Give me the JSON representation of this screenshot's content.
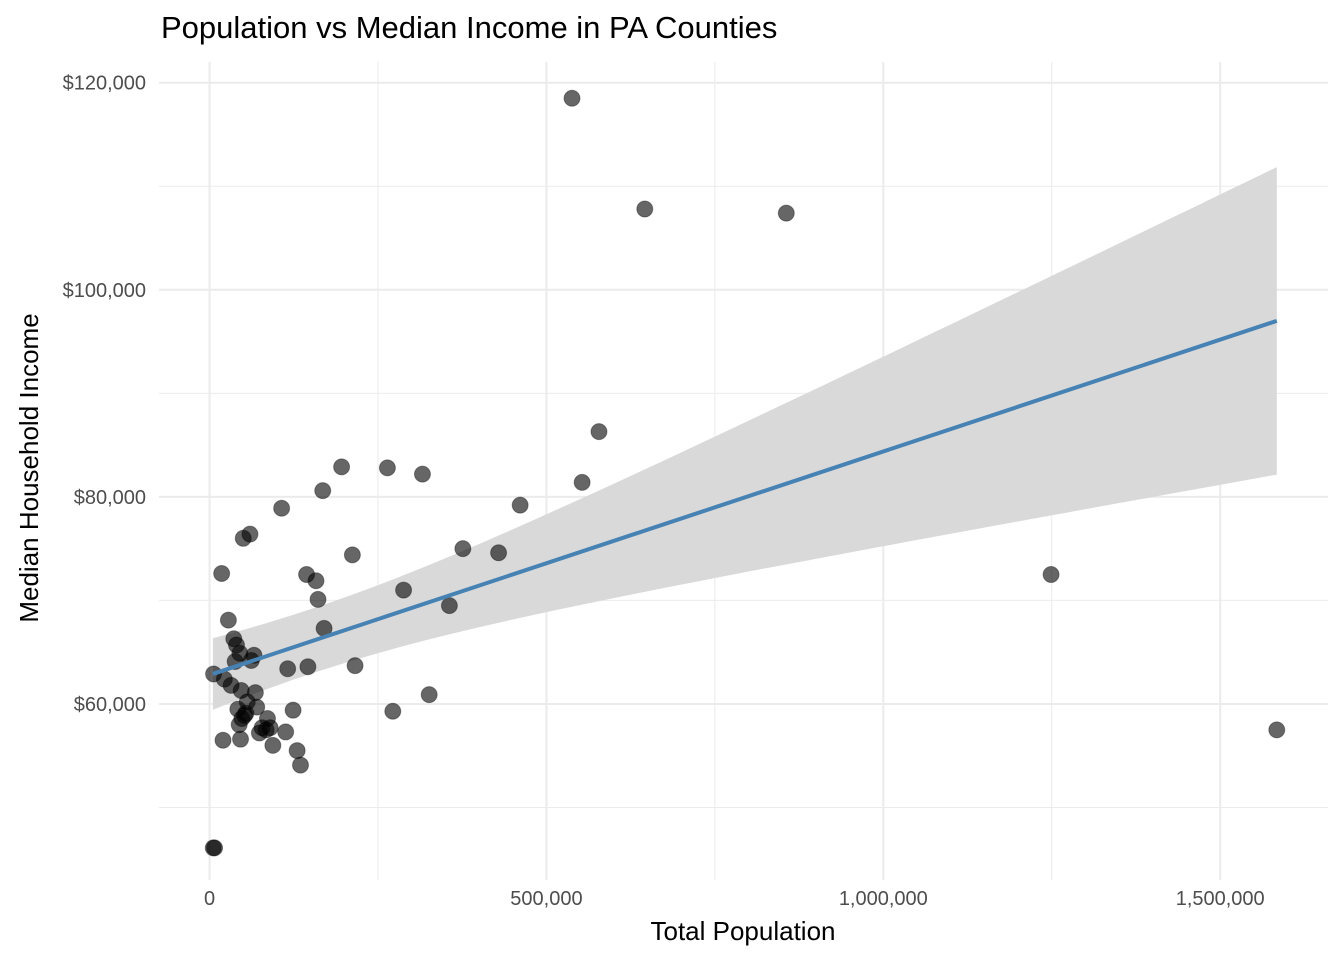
{
  "chart_data": {
    "type": "scatter",
    "title": "Population vs Median Income in PA Counties",
    "xlabel": "Total Population",
    "ylabel": "Median Household Income",
    "xlim": [
      -75000,
      1660000
    ],
    "ylim": [
      43000,
      122000
    ],
    "x_ticks": [
      0,
      500000,
      1000000,
      1500000
    ],
    "x_tick_labels": [
      "0",
      "500,000",
      "1,000,000",
      "1,500,000"
    ],
    "x_minor_ticks": [
      250000,
      750000,
      1250000
    ],
    "y_ticks": [
      60000,
      80000,
      100000,
      120000
    ],
    "y_tick_labels": [
      "$60,000",
      "$80,000",
      "$100,000",
      "$120,000"
    ],
    "y_minor_ticks": [
      50000,
      70000,
      90000,
      110000
    ],
    "grid": true,
    "legend": "none",
    "colors": {
      "points": "#000000",
      "trend_line": "#4682b4",
      "confidence_band": "#d9d9d9",
      "grid": "#ebebeb"
    },
    "series": [
      {
        "values": [
          {
            "x": 5500,
            "y": 46100
          },
          {
            "x": 7500,
            "y": 46100
          },
          {
            "x": 6000,
            "y": 62900
          },
          {
            "x": 18000,
            "y": 72600
          },
          {
            "x": 20000,
            "y": 56500
          },
          {
            "x": 22000,
            "y": 62400
          },
          {
            "x": 28000,
            "y": 68100
          },
          {
            "x": 32000,
            "y": 61800
          },
          {
            "x": 36000,
            "y": 66300
          },
          {
            "x": 38000,
            "y": 64100
          },
          {
            "x": 40000,
            "y": 65700
          },
          {
            "x": 42000,
            "y": 59500
          },
          {
            "x": 44000,
            "y": 58000
          },
          {
            "x": 45000,
            "y": 64900
          },
          {
            "x": 46000,
            "y": 56600
          },
          {
            "x": 47000,
            "y": 61300
          },
          {
            "x": 48000,
            "y": 58600
          },
          {
            "x": 50000,
            "y": 76000
          },
          {
            "x": 52000,
            "y": 58900
          },
          {
            "x": 54000,
            "y": 59100
          },
          {
            "x": 56000,
            "y": 60200
          },
          {
            "x": 60000,
            "y": 76400
          },
          {
            "x": 62000,
            "y": 64200
          },
          {
            "x": 66000,
            "y": 64700
          },
          {
            "x": 68000,
            "y": 61100
          },
          {
            "x": 70000,
            "y": 59700
          },
          {
            "x": 74000,
            "y": 57200
          },
          {
            "x": 78000,
            "y": 57700
          },
          {
            "x": 84000,
            "y": 57500
          },
          {
            "x": 86000,
            "y": 58600
          },
          {
            "x": 90000,
            "y": 57700
          },
          {
            "x": 94000,
            "y": 56000
          },
          {
            "x": 107000,
            "y": 78900
          },
          {
            "x": 113000,
            "y": 57300
          },
          {
            "x": 116000,
            "y": 63400
          },
          {
            "x": 124000,
            "y": 59400
          },
          {
            "x": 130000,
            "y": 55500
          },
          {
            "x": 135000,
            "y": 54100
          },
          {
            "x": 144000,
            "y": 72500
          },
          {
            "x": 146000,
            "y": 63600
          },
          {
            "x": 158000,
            "y": 71900
          },
          {
            "x": 161000,
            "y": 70100
          },
          {
            "x": 168000,
            "y": 80600
          },
          {
            "x": 170000,
            "y": 67300
          },
          {
            "x": 196000,
            "y": 82900
          },
          {
            "x": 212000,
            "y": 74400
          },
          {
            "x": 216000,
            "y": 63700
          },
          {
            "x": 264000,
            "y": 82800
          },
          {
            "x": 272000,
            "y": 59300
          },
          {
            "x": 288000,
            "y": 71000
          },
          {
            "x": 316000,
            "y": 82200
          },
          {
            "x": 326000,
            "y": 60900
          },
          {
            "x": 356000,
            "y": 69500
          },
          {
            "x": 376000,
            "y": 75000
          },
          {
            "x": 429000,
            "y": 74600
          },
          {
            "x": 461000,
            "y": 79200
          },
          {
            "x": 538000,
            "y": 118500
          },
          {
            "x": 553000,
            "y": 81400
          },
          {
            "x": 578000,
            "y": 86300
          },
          {
            "x": 646000,
            "y": 107800
          },
          {
            "x": 856000,
            "y": 107400
          },
          {
            "x": 1249000,
            "y": 72500
          },
          {
            "x": 1584000,
            "y": 57500
          }
        ]
      }
    ],
    "trend_line": {
      "method": "linear regression",
      "x_range": [
        5000,
        1584000
      ],
      "y_at_ends": [
        62900,
        97000
      ],
      "band_lower_at_ends": [
        59500,
        82200
      ],
      "band_upper_at_ends": [
        66400,
        111900
      ]
    }
  }
}
